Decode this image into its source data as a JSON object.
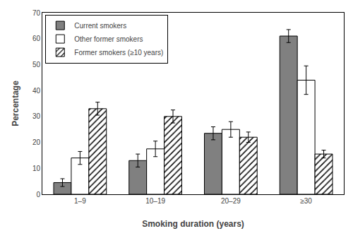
{
  "chart_data": {
    "type": "bar",
    "categories": [
      "1–9",
      "10–19",
      "20–29",
      "≥30"
    ],
    "series": [
      {
        "name": "Current smokers",
        "color": "#808080",
        "values": [
          4.5,
          13.0,
          23.5,
          61.0
        ],
        "errors": [
          1.5,
          2.5,
          2.5,
          2.5
        ]
      },
      {
        "name": "Other former smokers",
        "color": "#ffffff",
        "values": [
          14.0,
          17.5,
          25.0,
          44.0
        ],
        "errors": [
          2.5,
          3.0,
          3.0,
          5.5
        ]
      },
      {
        "name": "Former smokers (≥10 years)",
        "color": "#ffffff",
        "marker": "hatch",
        "values": [
          33.0,
          30.0,
          22.0,
          15.5
        ],
        "errors": [
          2.5,
          2.5,
          2.0,
          1.5
        ]
      }
    ],
    "xlabel": "Smoking duration (years)",
    "ylabel": "Percentage",
    "ylim": [
      0,
      70
    ],
    "yticks": [
      0,
      10,
      20,
      30,
      40,
      50,
      60,
      70
    ],
    "grid": false,
    "legend": "upper left"
  }
}
